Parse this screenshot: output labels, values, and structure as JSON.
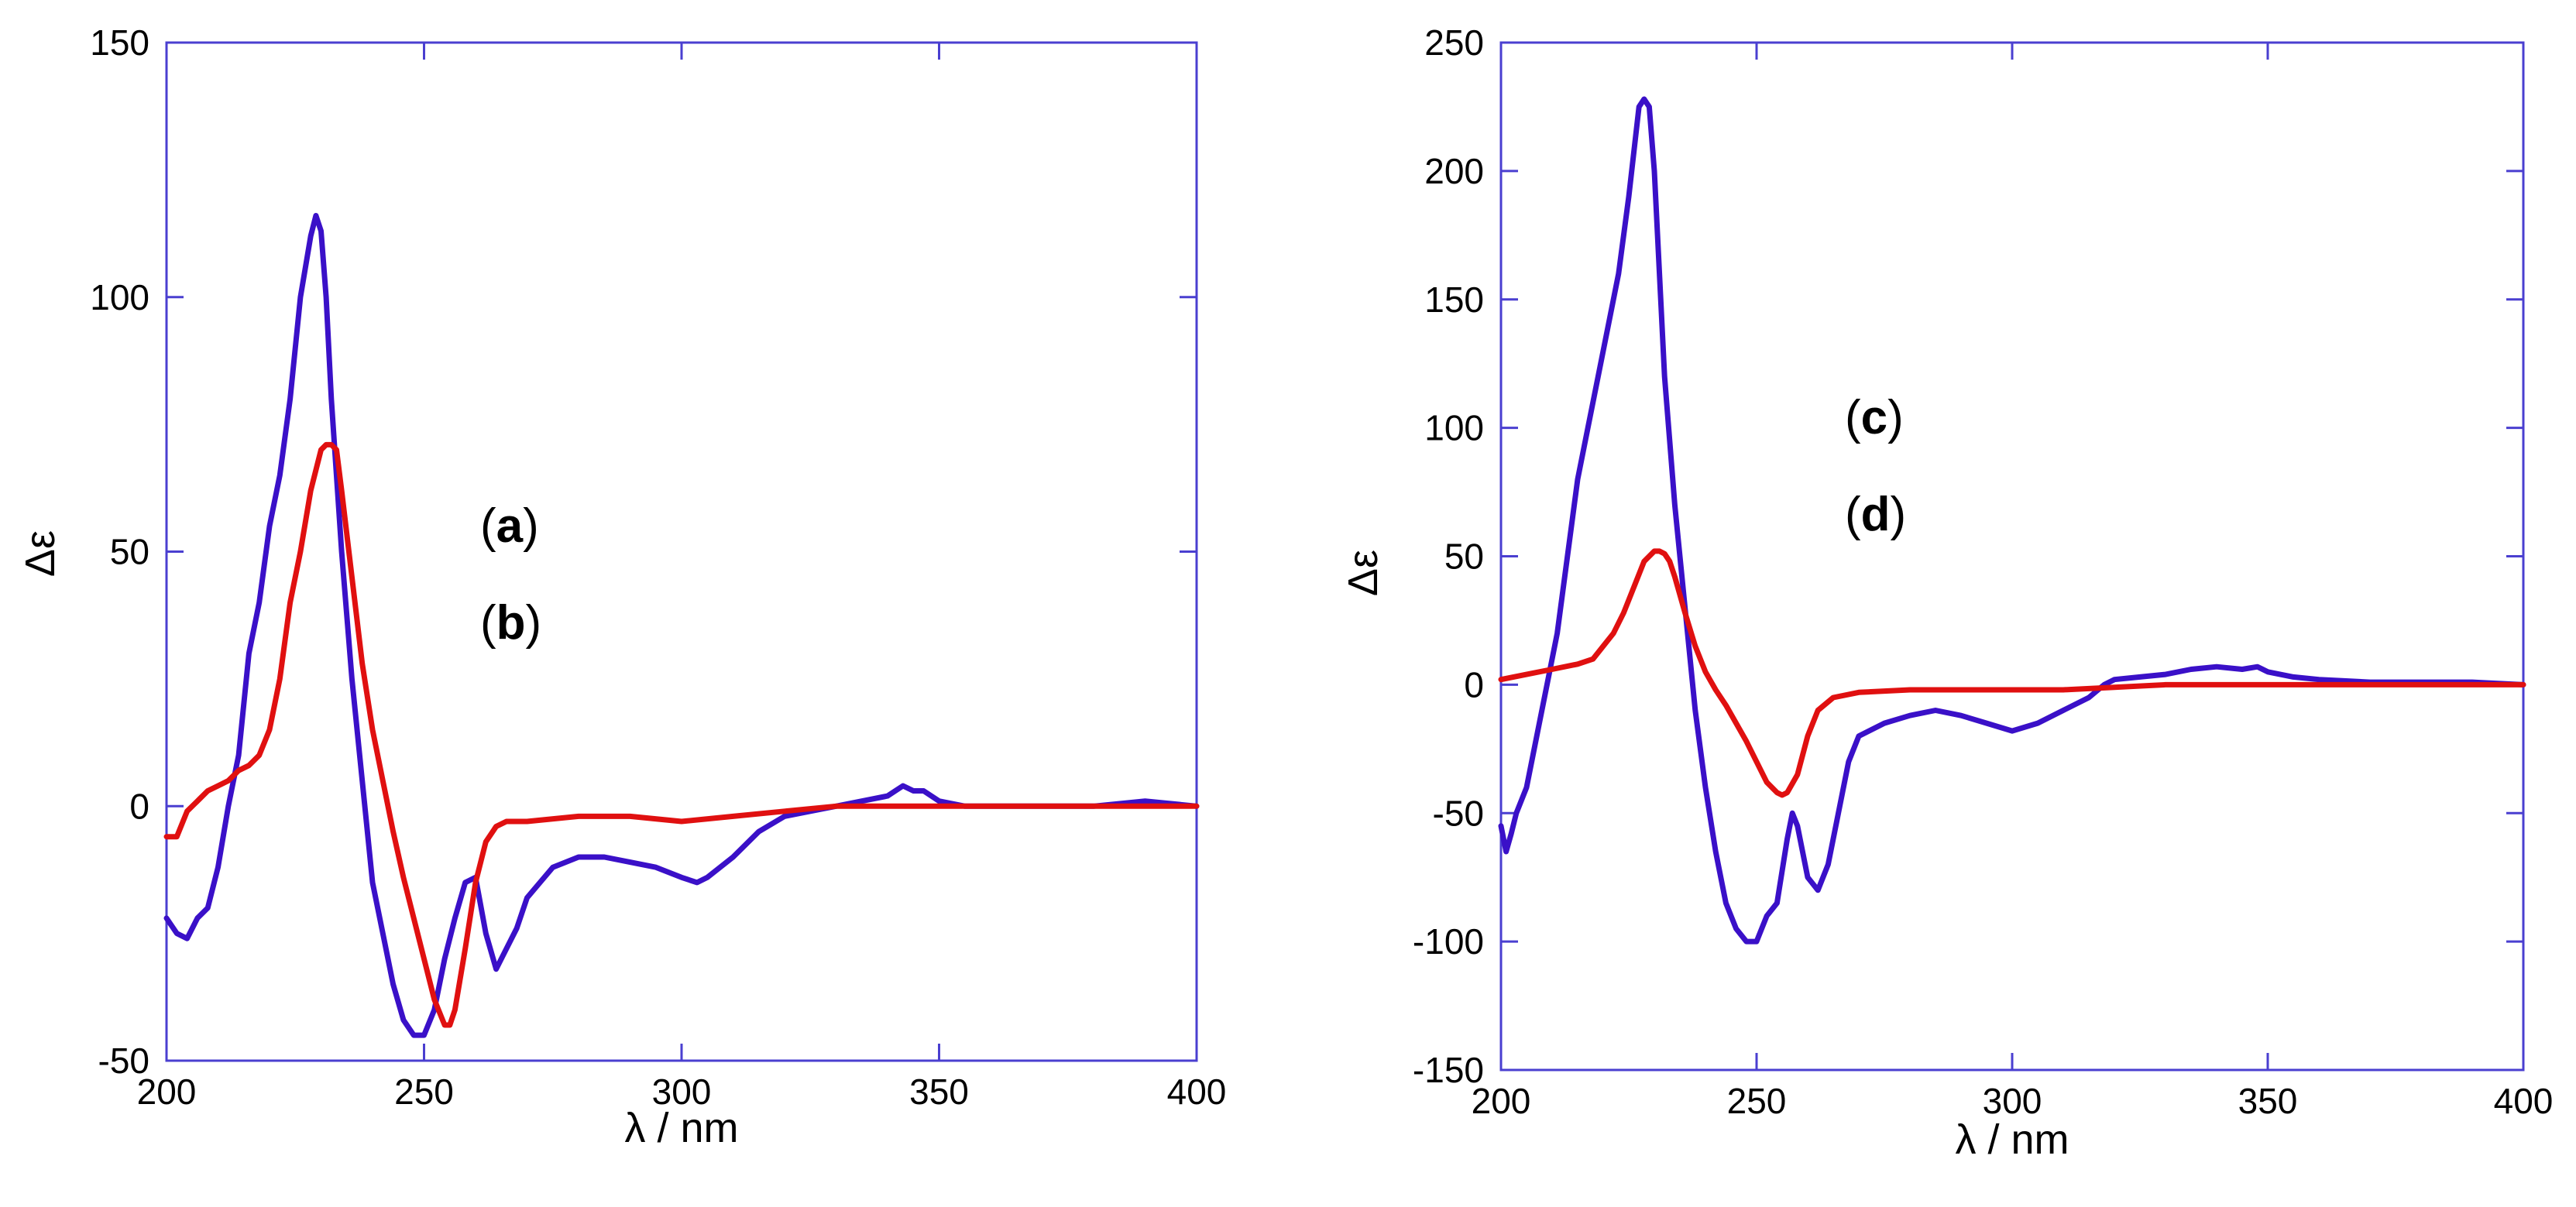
{
  "chart_data": [
    {
      "type": "line",
      "xlabel": "λ / nm",
      "ylabel": "Δε",
      "xlim": [
        200,
        400
      ],
      "ylim": [
        -50,
        150
      ],
      "xticks": [
        200,
        250,
        300,
        350,
        400
      ],
      "yticks": [
        -50,
        0,
        50,
        100,
        150
      ],
      "tick_labels_x": [
        "200",
        "250",
        "300",
        "350",
        "400"
      ],
      "tick_labels_y": [
        "-50",
        "0",
        "50",
        "100",
        "150"
      ],
      "annotations": [
        {
          "open": "(",
          "letter": "a",
          "close": ")"
        },
        {
          "open": "(",
          "letter": "b",
          "close": ")"
        }
      ],
      "grid": false,
      "series": [
        {
          "color": "#3a10c8",
          "x": [
            200,
            202,
            204,
            206,
            208,
            210,
            212,
            214,
            216,
            218,
            220,
            222,
            224,
            226,
            228,
            229,
            230,
            231,
            232,
            234,
            236,
            238,
            240,
            242,
            244,
            246,
            248,
            250,
            252,
            254,
            256,
            258,
            260,
            262,
            264,
            266,
            268,
            270,
            275,
            280,
            285,
            290,
            295,
            300,
            303,
            305,
            310,
            315,
            320,
            325,
            330,
            335,
            340,
            343,
            345,
            347,
            350,
            355,
            360,
            370,
            380,
            390,
            400
          ],
          "y": [
            -22,
            -25,
            -26,
            -22,
            -20,
            -12,
            0,
            10,
            30,
            40,
            55,
            65,
            80,
            100,
            112,
            116,
            113,
            100,
            80,
            50,
            25,
            5,
            -15,
            -25,
            -35,
            -42,
            -45,
            -45,
            -40,
            -30,
            -22,
            -15,
            -14,
            -25,
            -32,
            -28,
            -24,
            -18,
            -12,
            -10,
            -10,
            -11,
            -12,
            -14,
            -15,
            -14,
            -10,
            -5,
            -2,
            -1,
            0,
            1,
            2,
            4,
            3,
            3,
            1,
            0,
            0,
            0,
            0,
            1,
            0
          ]
        },
        {
          "color": "#e01010",
          "x": [
            200,
            202,
            204,
            206,
            208,
            210,
            212,
            214,
            216,
            218,
            220,
            222,
            224,
            226,
            228,
            230,
            231,
            232,
            233,
            234,
            236,
            238,
            240,
            242,
            244,
            246,
            248,
            250,
            252,
            254,
            255,
            256,
            258,
            260,
            262,
            264,
            266,
            270,
            280,
            290,
            300,
            310,
            320,
            330,
            340,
            350,
            360,
            370,
            380,
            390,
            400
          ],
          "y": [
            -6,
            -6,
            -1,
            1,
            3,
            4,
            5,
            7,
            8,
            10,
            15,
            25,
            40,
            50,
            62,
            70,
            71,
            71,
            70,
            62,
            45,
            28,
            15,
            5,
            -5,
            -14,
            -22,
            -30,
            -38,
            -43,
            -43,
            -40,
            -28,
            -15,
            -7,
            -4,
            -3,
            -3,
            -2,
            -2,
            -3,
            -2,
            -1,
            0,
            0,
            0,
            0,
            0,
            0,
            0,
            0
          ]
        }
      ]
    },
    {
      "type": "line",
      "xlabel": "λ / nm",
      "ylabel": "Δε",
      "xlim": [
        200,
        400
      ],
      "ylim": [
        -150,
        250
      ],
      "xticks": [
        200,
        250,
        300,
        350,
        400
      ],
      "yticks": [
        -150,
        -100,
        -50,
        0,
        50,
        100,
        150,
        200,
        250
      ],
      "tick_labels_x": [
        "200",
        "250",
        "300",
        "350",
        "400"
      ],
      "tick_labels_y": [
        "-150",
        "-100",
        "-50",
        "0",
        "50",
        "100",
        "150",
        "200",
        "250"
      ],
      "annotations": [
        {
          "open": "(",
          "letter": "c",
          "close": ")"
        },
        {
          "open": "(",
          "letter": "d",
          "close": ")"
        }
      ],
      "grid": false,
      "series": [
        {
          "color": "#3a10c8",
          "x": [
            200,
            201,
            202,
            203,
            205,
            207,
            209,
            211,
            213,
            215,
            217,
            219,
            221,
            223,
            225,
            227,
            228,
            229,
            230,
            231,
            232,
            234,
            236,
            238,
            240,
            242,
            244,
            246,
            248,
            250,
            252,
            254,
            256,
            257,
            258,
            260,
            262,
            264,
            266,
            268,
            270,
            275,
            280,
            285,
            290,
            295,
            300,
            305,
            310,
            315,
            318,
            320,
            325,
            330,
            335,
            340,
            345,
            348,
            350,
            355,
            360,
            370,
            380,
            390,
            400
          ],
          "y": [
            -55,
            -65,
            -58,
            -50,
            -40,
            -20,
            0,
            20,
            50,
            80,
            100,
            120,
            140,
            160,
            190,
            225,
            228,
            225,
            200,
            160,
            120,
            70,
            30,
            -10,
            -40,
            -65,
            -85,
            -95,
            -100,
            -100,
            -90,
            -85,
            -60,
            -50,
            -55,
            -75,
            -80,
            -70,
            -50,
            -30,
            -20,
            -15,
            -12,
            -10,
            -12,
            -15,
            -18,
            -15,
            -10,
            -5,
            0,
            2,
            3,
            4,
            6,
            7,
            6,
            7,
            5,
            3,
            2,
            1,
            1,
            1,
            0
          ]
        },
        {
          "color": "#e01010",
          "x": [
            200,
            205,
            210,
            215,
            218,
            220,
            222,
            224,
            226,
            228,
            230,
            231,
            232,
            233,
            234,
            236,
            238,
            240,
            242,
            244,
            246,
            248,
            250,
            252,
            254,
            255,
            256,
            258,
            260,
            262,
            265,
            270,
            280,
            290,
            300,
            310,
            320,
            330,
            340,
            350,
            360,
            370,
            380,
            390,
            400
          ],
          "y": [
            2,
            4,
            6,
            8,
            10,
            15,
            20,
            28,
            38,
            48,
            52,
            52,
            51,
            48,
            42,
            28,
            15,
            5,
            -2,
            -8,
            -15,
            -22,
            -30,
            -38,
            -42,
            -43,
            -42,
            -35,
            -20,
            -10,
            -5,
            -3,
            -2,
            -2,
            -2,
            -2,
            -1,
            0,
            0,
            0,
            0,
            0,
            0,
            0,
            0
          ]
        }
      ]
    }
  ]
}
